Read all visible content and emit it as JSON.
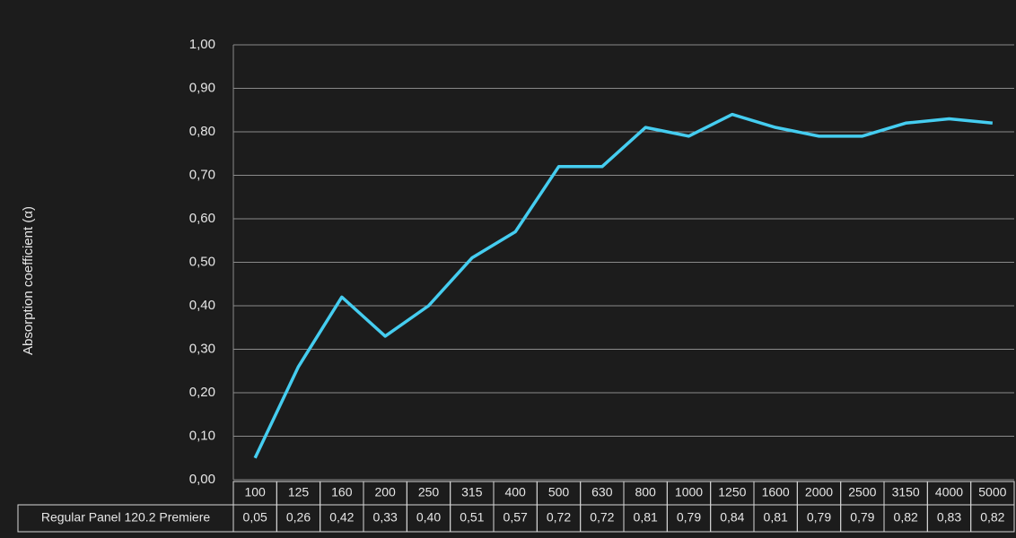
{
  "chart_data": {
    "type": "line",
    "ylabel": "Absorption coefficient (α)",
    "categories": [
      "100",
      "125",
      "160",
      "200",
      "250",
      "315",
      "400",
      "500",
      "630",
      "800",
      "1000",
      "1250",
      "1600",
      "2000",
      "2500",
      "3150",
      "4000",
      "5000"
    ],
    "series": [
      {
        "name": "Regular Panel 120.2 Premiere",
        "color": "#45cdf0",
        "values": [
          0.05,
          0.26,
          0.42,
          0.33,
          0.4,
          0.51,
          0.57,
          0.72,
          0.72,
          0.81,
          0.79,
          0.84,
          0.81,
          0.79,
          0.79,
          0.82,
          0.83,
          0.82
        ],
        "value_labels": [
          "0,05",
          "0,26",
          "0,42",
          "0,33",
          "0,40",
          "0,51",
          "0,57",
          "0,72",
          "0,72",
          "0,81",
          "0,79",
          "0,84",
          "0,81",
          "0,79",
          "0,79",
          "0,82",
          "0,83",
          "0,82"
        ]
      }
    ],
    "ylim": [
      0,
      1
    ],
    "yticks": [
      {
        "value": 0,
        "label": "0,00"
      },
      {
        "value": 0.1,
        "label": "0,10"
      },
      {
        "value": 0.2,
        "label": "0,20"
      },
      {
        "value": 0.3,
        "label": "0,30"
      },
      {
        "value": 0.4,
        "label": "0,40"
      },
      {
        "value": 0.5,
        "label": "0,50"
      },
      {
        "value": 0.6,
        "label": "0,60"
      },
      {
        "value": 0.7,
        "label": "0,70"
      },
      {
        "value": 0.8,
        "label": "0,80"
      },
      {
        "value": 0.9,
        "label": "0,90"
      },
      {
        "value": 1,
        "label": "1,00"
      }
    ],
    "grid": true
  }
}
